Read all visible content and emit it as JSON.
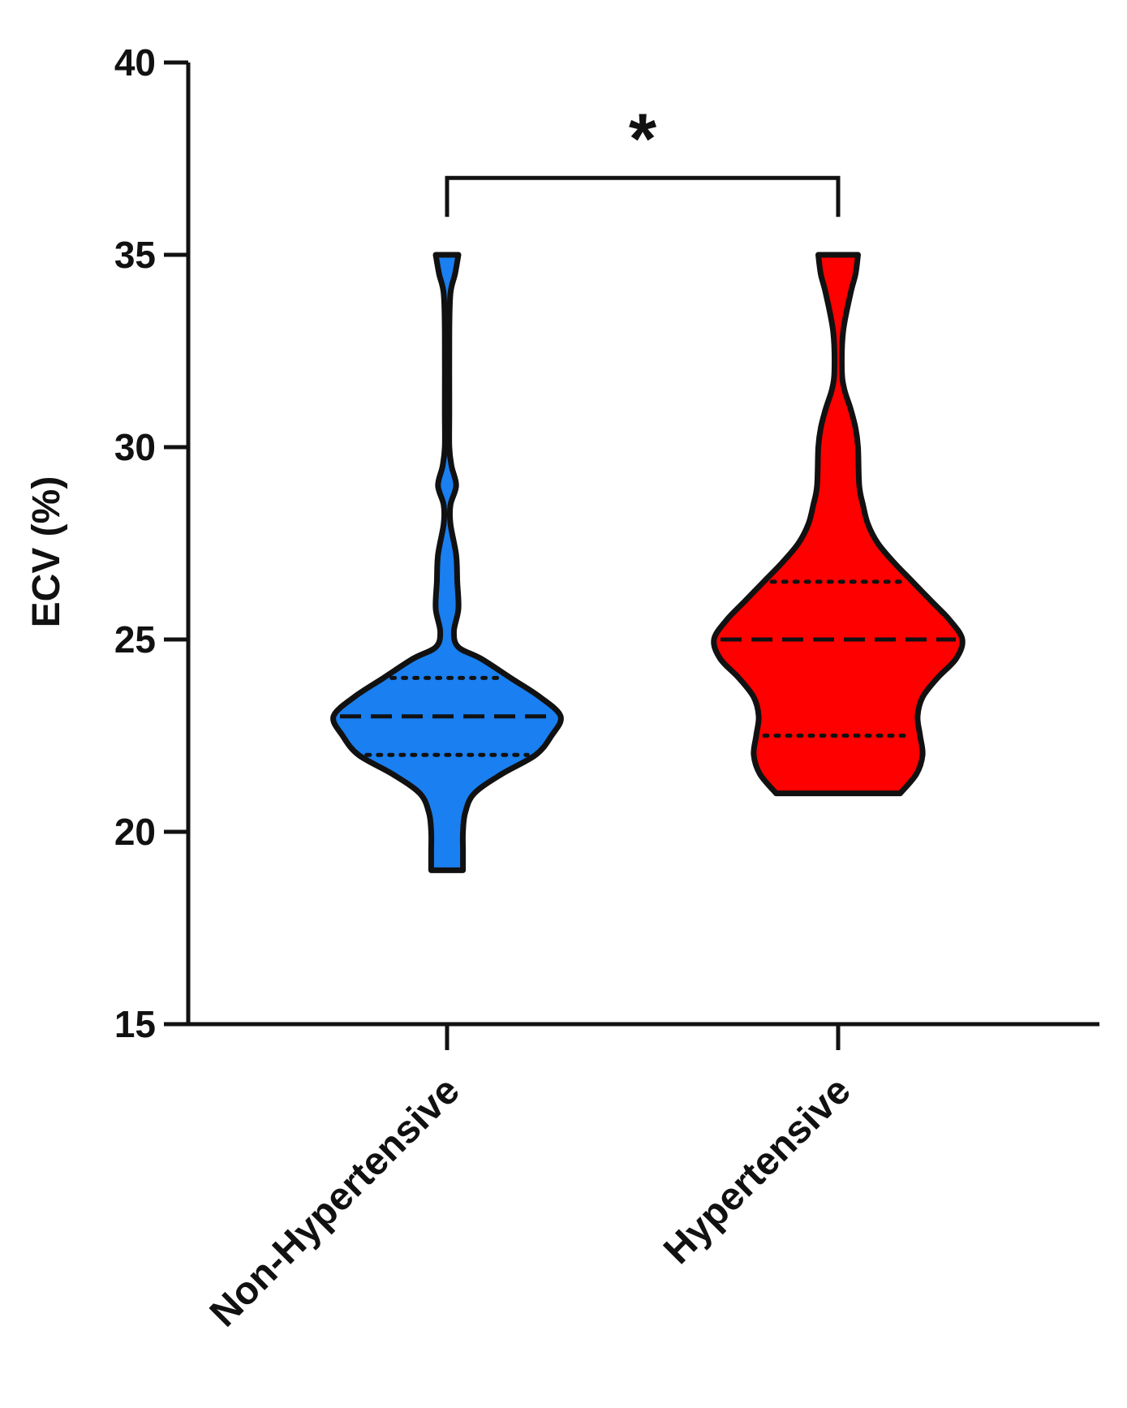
{
  "chart_data": {
    "type": "violin",
    "ylabel": "ECV (%)",
    "xlabel": "",
    "ylim": [
      15,
      40
    ],
    "yticks": [
      15,
      20,
      25,
      30,
      35,
      40
    ],
    "categories": [
      "Non-Hypertensive",
      "Hypertensive"
    ],
    "grid": false,
    "series": [
      {
        "category": "Non-Hypertensive",
        "color": "#1a7ff0",
        "min": 19,
        "max": 35,
        "median": 23,
        "q1": 22,
        "q3": 24,
        "density": [
          [
            19.0,
            0.14
          ],
          [
            19.5,
            0.14
          ],
          [
            20.0,
            0.14
          ],
          [
            20.5,
            0.16
          ],
          [
            21.0,
            0.24
          ],
          [
            21.5,
            0.48
          ],
          [
            22.0,
            0.78
          ],
          [
            22.5,
            0.92
          ],
          [
            23.0,
            1.0
          ],
          [
            23.5,
            0.82
          ],
          [
            24.0,
            0.56
          ],
          [
            24.5,
            0.3
          ],
          [
            24.8,
            0.1
          ],
          [
            25.2,
            0.06
          ],
          [
            25.8,
            0.1
          ],
          [
            26.5,
            0.09
          ],
          [
            27.2,
            0.08
          ],
          [
            28.0,
            0.03
          ],
          [
            28.5,
            0.03
          ],
          [
            29.0,
            0.08
          ],
          [
            29.5,
            0.04
          ],
          [
            30.0,
            0.02
          ],
          [
            31.0,
            0.02
          ],
          [
            33.0,
            0.02
          ],
          [
            34.0,
            0.03
          ],
          [
            34.5,
            0.07
          ],
          [
            35.0,
            0.1
          ]
        ]
      },
      {
        "category": "Hypertensive",
        "color": "#ff0000",
        "min": 21,
        "max": 35,
        "median": 25,
        "q1": 22.5,
        "q3": 26.5,
        "density": [
          [
            21.0,
            0.5
          ],
          [
            21.5,
            0.63
          ],
          [
            22.0,
            0.68
          ],
          [
            22.5,
            0.66
          ],
          [
            23.0,
            0.64
          ],
          [
            23.5,
            0.68
          ],
          [
            24.0,
            0.8
          ],
          [
            24.5,
            0.95
          ],
          [
            25.0,
            1.0
          ],
          [
            25.5,
            0.9
          ],
          [
            26.0,
            0.75
          ],
          [
            26.5,
            0.6
          ],
          [
            27.0,
            0.45
          ],
          [
            27.5,
            0.32
          ],
          [
            28.0,
            0.24
          ],
          [
            28.5,
            0.2
          ],
          [
            29.0,
            0.17
          ],
          [
            30.0,
            0.16
          ],
          [
            30.5,
            0.14
          ],
          [
            31.0,
            0.1
          ],
          [
            31.5,
            0.05
          ],
          [
            32.0,
            0.03
          ],
          [
            33.0,
            0.04
          ],
          [
            34.0,
            0.1
          ],
          [
            34.5,
            0.14
          ],
          [
            35.0,
            0.16
          ]
        ]
      }
    ],
    "annotations": [
      {
        "text": "*",
        "between": [
          "Non-Hypertensive",
          "Hypertensive"
        ],
        "y": 37
      }
    ]
  }
}
